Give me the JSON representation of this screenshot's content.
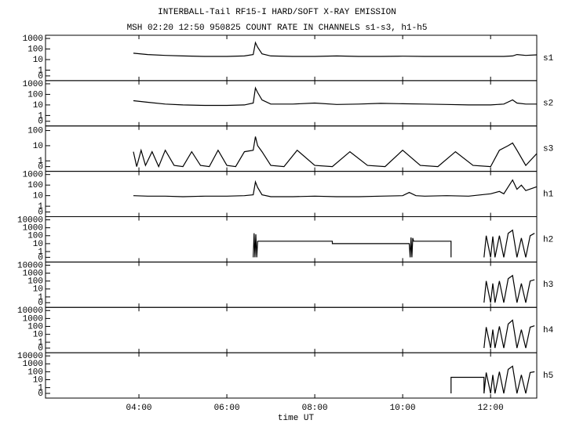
{
  "header": {
    "title": "INTERBALL-Tail RF15-I HARD/SOFT X-RAY EMISSION",
    "subtitle": "MSH 02:20 12:50 950825  COUNT RATE IN CHANNELS s1-s3, h1-h5"
  },
  "time_axis": {
    "label": "time UT",
    "xlim": [
      1.875,
      13.05
    ],
    "xticks": [
      {
        "value": 4,
        "label": "04:00"
      },
      {
        "value": 6,
        "label": "06:00"
      },
      {
        "value": 8,
        "label": "08:00"
      },
      {
        "value": 10,
        "label": "10:00"
      },
      {
        "value": 12,
        "label": "12:00"
      }
    ]
  },
  "chart_data": [
    {
      "type": "line",
      "title": "s1",
      "log_scale": true,
      "color": "#000000",
      "ylim": [
        0,
        2000
      ],
      "yticks": [
        1000,
        100,
        10,
        1,
        0
      ],
      "x": [
        3.875,
        4.2,
        4.6,
        5.0,
        5.5,
        6.0,
        6.4,
        6.6,
        6.65,
        6.7,
        6.8,
        7.0,
        7.5,
        8.0,
        8.5,
        9.0,
        9.5,
        10.0,
        10.5,
        11.0,
        11.5,
        12.0,
        12.3,
        12.5,
        12.6,
        12.8,
        13.05
      ],
      "values": [
        40,
        30,
        25,
        22,
        20,
        20,
        22,
        30,
        400,
        150,
        35,
        22,
        20,
        20,
        22,
        20,
        20,
        21,
        20,
        20,
        20,
        20,
        20,
        22,
        30,
        25,
        28
      ]
    },
    {
      "type": "line",
      "title": "s2",
      "log_scale": true,
      "color": "#000000",
      "ylim": [
        0,
        2000
      ],
      "yticks": [
        1000,
        100,
        10,
        1,
        0
      ],
      "x": [
        3.875,
        4.2,
        4.6,
        5.0,
        5.5,
        6.0,
        6.4,
        6.6,
        6.65,
        6.7,
        6.8,
        7.0,
        7.5,
        8.0,
        8.5,
        9.0,
        9.5,
        10.0,
        10.5,
        11.0,
        11.5,
        12.0,
        12.3,
        12.5,
        12.6,
        12.8,
        13.05
      ],
      "values": [
        25,
        18,
        12,
        10,
        9,
        9,
        10,
        15,
        400,
        150,
        30,
        12,
        12,
        15,
        11,
        12,
        14,
        13,
        12,
        11,
        10,
        10,
        12,
        30,
        15,
        12,
        12
      ]
    },
    {
      "type": "line",
      "title": "s3",
      "log_scale": true,
      "color": "#000000",
      "ylim": [
        0,
        200
      ],
      "yticks": [
        100,
        10,
        1,
        0
      ],
      "x": [
        3.875,
        3.95,
        4.05,
        4.15,
        4.3,
        4.45,
        4.6,
        4.8,
        5.0,
        5.2,
        5.4,
        5.6,
        5.8,
        6.0,
        6.2,
        6.4,
        6.6,
        6.65,
        6.7,
        6.8,
        7.0,
        7.3,
        7.6,
        8.0,
        8.4,
        8.8,
        9.2,
        9.6,
        10.0,
        10.4,
        10.8,
        11.2,
        11.6,
        12.0,
        12.2,
        12.4,
        12.5,
        12.6,
        12.8,
        13.05
      ],
      "values": [
        4,
        0,
        5,
        0.5,
        4,
        0,
        5,
        0.5,
        0,
        4,
        0.5,
        0,
        5,
        0.5,
        0,
        4,
        5,
        40,
        10,
        4,
        0.5,
        0,
        5,
        0.5,
        0,
        4,
        0.5,
        0,
        5,
        0.5,
        0,
        4,
        0.5,
        0,
        5,
        10,
        15,
        5,
        0.5,
        3
      ]
    },
    {
      "type": "line",
      "title": "h1",
      "log_scale": true,
      "color": "#000000",
      "ylim": [
        0,
        2000
      ],
      "yticks": [
        1000,
        100,
        10,
        1,
        0
      ],
      "x": [
        3.875,
        4.2,
        4.6,
        5.0,
        5.5,
        6.0,
        6.4,
        6.6,
        6.65,
        6.7,
        6.8,
        7.0,
        7.5,
        8.0,
        8.5,
        9.0,
        9.5,
        10.0,
        10.15,
        10.3,
        10.5,
        11.0,
        11.5,
        12.0,
        12.2,
        12.3,
        12.5,
        12.6,
        12.7,
        12.8,
        13.05
      ],
      "values": [
        10,
        9,
        9,
        8,
        9,
        9,
        10,
        12,
        200,
        60,
        12,
        8,
        8,
        9,
        8,
        8,
        9,
        10,
        20,
        10,
        9,
        10,
        9,
        15,
        25,
        15,
        300,
        40,
        100,
        30,
        70
      ]
    },
    {
      "type": "line",
      "title": "h2",
      "log_scale": true,
      "color": "#000000",
      "ylim": [
        0,
        25000
      ],
      "yticks": [
        10000,
        1000,
        100,
        10,
        1,
        0
      ],
      "x": [
        6.6,
        6.62,
        6.64,
        6.66,
        6.68,
        6.7,
        8.4,
        8.4,
        10.15,
        10.17,
        10.19,
        10.21,
        10.23,
        10.25,
        11.1,
        11.1,
        11.5,
        11.85,
        11.9,
        12.0,
        12.05,
        12.1,
        12.2,
        12.3,
        12.4,
        12.5,
        12.6,
        12.7,
        12.8,
        12.9,
        13.0
      ],
      "values": [
        0,
        200,
        0,
        150,
        0,
        20,
        20,
        10,
        10,
        0,
        60,
        0,
        50,
        20,
        20,
        0,
        null,
        0,
        100,
        0,
        80,
        0,
        100,
        0,
        200,
        500,
        0,
        50,
        0,
        100,
        200
      ]
    },
    {
      "type": "line",
      "title": "h3",
      "log_scale": true,
      "color": "#000000",
      "ylim": [
        0,
        25000
      ],
      "yticks": [
        10000,
        1000,
        100,
        10,
        1,
        0
      ],
      "x": [
        11.85,
        11.9,
        12.0,
        12.05,
        12.1,
        12.2,
        12.3,
        12.4,
        12.5,
        12.6,
        12.7,
        12.8,
        12.9,
        13.0
      ],
      "values": [
        0,
        100,
        0,
        50,
        0,
        100,
        0,
        200,
        500,
        0,
        50,
        0,
        100,
        150
      ]
    },
    {
      "type": "line",
      "title": "h4",
      "log_scale": true,
      "color": "#000000",
      "ylim": [
        0,
        25000
      ],
      "yticks": [
        10000,
        1000,
        100,
        10,
        1,
        0
      ],
      "x": [
        11.85,
        11.9,
        12.0,
        12.05,
        12.1,
        12.2,
        12.3,
        12.4,
        12.5,
        12.6,
        12.7,
        12.8,
        12.9,
        13.0
      ],
      "values": [
        0,
        80,
        0,
        40,
        0,
        100,
        0,
        200,
        600,
        0,
        40,
        0,
        80,
        120
      ]
    },
    {
      "type": "line",
      "title": "h5",
      "log_scale": true,
      "color": "#000000",
      "ylim": [
        0,
        25000
      ],
      "yticks": [
        10000,
        1000,
        100,
        10,
        1,
        0
      ],
      "x": [
        11.1,
        11.1,
        11.85,
        11.85,
        11.9,
        12.0,
        12.05,
        12.1,
        12.2,
        12.3,
        12.4,
        12.5,
        12.6,
        12.7,
        12.8,
        12.9,
        13.0
      ],
      "values": [
        0,
        20,
        20,
        0,
        80,
        0,
        40,
        0,
        100,
        0,
        200,
        500,
        0,
        40,
        0,
        80,
        100
      ]
    }
  ]
}
